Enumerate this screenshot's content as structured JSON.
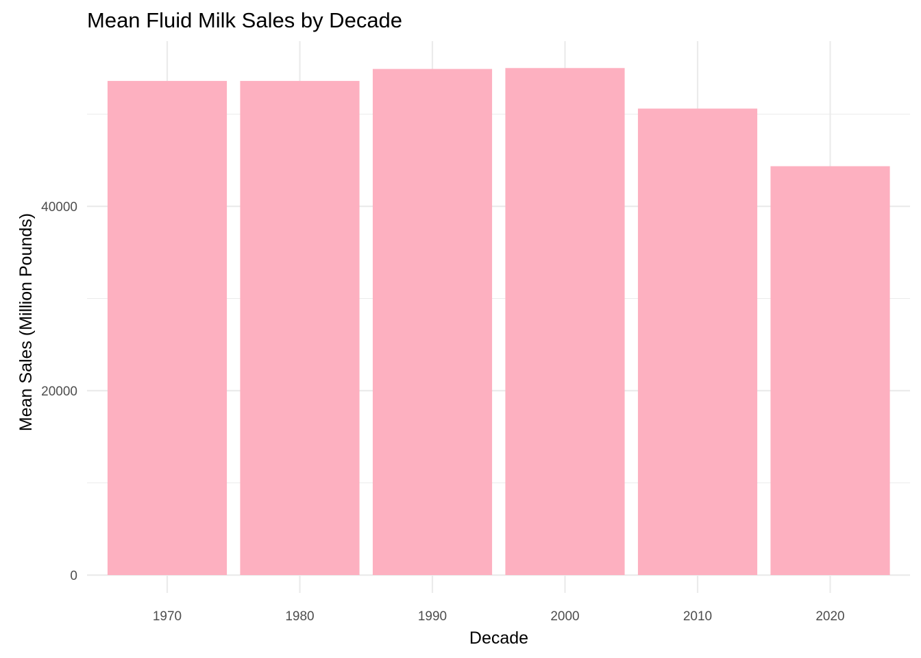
{
  "chart_data": {
    "type": "bar",
    "title": "Mean Fluid Milk Sales by Decade",
    "xlabel": "Decade",
    "ylabel": "Mean Sales (Million Pounds)",
    "categories": [
      "1970",
      "1980",
      "1990",
      "2000",
      "2010",
      "2020"
    ],
    "values": [
      53600,
      53600,
      54900,
      55000,
      50600,
      44350
    ],
    "ylim": [
      0,
      57750
    ],
    "y_ticks": [
      0,
      20000,
      40000
    ],
    "y_tick_labels": [
      "0",
      "20000",
      "40000"
    ],
    "y_minor_ticks": [
      10000,
      30000,
      50000
    ],
    "grid": true,
    "legend": "none",
    "bar_color": "#FDB0C0",
    "grid_color": "#EBEBEB"
  }
}
